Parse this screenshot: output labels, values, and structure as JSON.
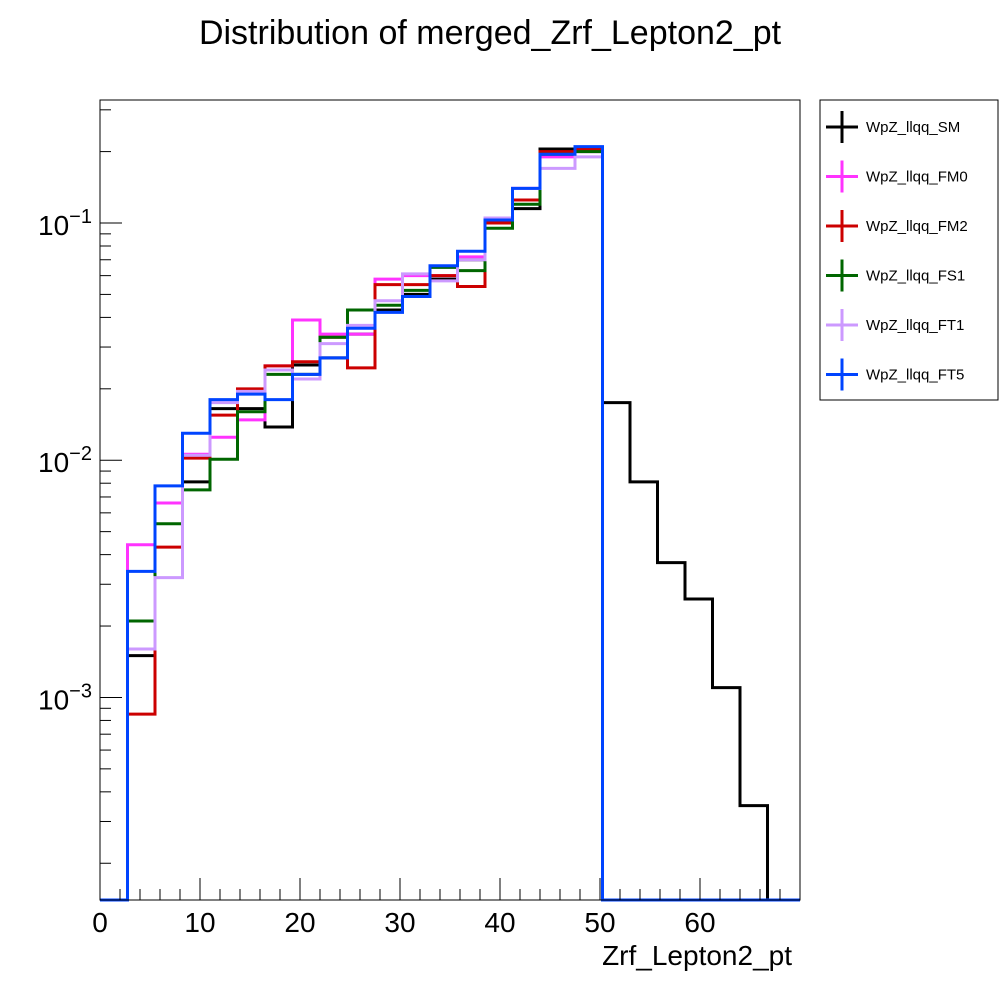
{
  "chart_data": {
    "type": "line",
    "style": "step-histogram",
    "title": "Distribution of merged_Zrf_Lepton2_pt",
    "xlabel": "Zrf_Lepton2_pt",
    "ylabel": "",
    "xlim": [
      0,
      70
    ],
    "ylim": [
      0.00014,
      0.33
    ],
    "yscale": "log",
    "grid": false,
    "legend_position": "right",
    "bin_edges": [
      0,
      2.75,
      5.5,
      8.25,
      11,
      13.75,
      16.5,
      19.25,
      22,
      24.75,
      27.5,
      30.25,
      33,
      35.75,
      38.5,
      41.25,
      44,
      47.5,
      50.25,
      53,
      55.75,
      58.5,
      61.25,
      64,
      66.75,
      70
    ],
    "x_ticks": [
      {
        "value": 0,
        "label": "0"
      },
      {
        "value": 10,
        "label": "10"
      },
      {
        "value": 20,
        "label": "20"
      },
      {
        "value": 30,
        "label": "30"
      },
      {
        "value": 40,
        "label": "40"
      },
      {
        "value": 50,
        "label": "50"
      },
      {
        "value": 60,
        "label": "60"
      }
    ],
    "y_ticks": [
      {
        "value": 0.001,
        "base": "10",
        "exp": "−3"
      },
      {
        "value": 0.01,
        "base": "10",
        "exp": "−2"
      },
      {
        "value": 0.1,
        "base": "10",
        "exp": "−1"
      }
    ],
    "series": [
      {
        "name": "WpZ_llqq_SM",
        "color": "#000000",
        "values": [
          0,
          0.0015,
          0.0066,
          0.0081,
          0.0165,
          0.0165,
          0.0138,
          0.0252,
          0.027,
          0.034,
          0.043,
          0.05,
          0.058,
          0.07,
          0.1,
          0.115,
          0.205,
          0.205,
          0.0175,
          0.0081,
          0.0037,
          0.0026,
          0.0011,
          0.00035,
          0,
          0
        ]
      },
      {
        "name": "WpZ_llqq_FM0",
        "color": "#ff33ff",
        "values": [
          0,
          0.0044,
          0.0066,
          0.0106,
          0.0125,
          0.0148,
          0.025,
          0.039,
          0.034,
          0.034,
          0.058,
          0.06,
          0.06,
          0.072,
          0.105,
          0.14,
          0.19,
          0.2,
          0,
          0,
          0,
          0,
          0,
          0,
          0,
          0
        ]
      },
      {
        "name": "WpZ_llqq_FM2",
        "color": "#cc0000",
        "values": [
          0,
          0.00085,
          0.0043,
          0.0102,
          0.0155,
          0.02,
          0.025,
          0.026,
          0.033,
          0.0245,
          0.055,
          0.055,
          0.06,
          0.054,
          0.1,
          0.125,
          0.2,
          0.205,
          0,
          0,
          0,
          0,
          0,
          0,
          0,
          0
        ]
      },
      {
        "name": "WpZ_llqq_FS1",
        "color": "#006600",
        "values": [
          0,
          0.0021,
          0.0054,
          0.0075,
          0.0101,
          0.016,
          0.023,
          0.023,
          0.033,
          0.043,
          0.045,
          0.052,
          0.065,
          0.063,
          0.095,
          0.12,
          0.195,
          0.2,
          0,
          0,
          0,
          0,
          0,
          0,
          0,
          0
        ]
      },
      {
        "name": "WpZ_llqq_FT1",
        "color": "#cc99ff",
        "values": [
          0,
          0.0016,
          0.0032,
          0.0105,
          0.0175,
          0.0195,
          0.024,
          0.022,
          0.031,
          0.037,
          0.047,
          0.061,
          0.057,
          0.07,
          0.105,
          0.14,
          0.17,
          0.19,
          0,
          0,
          0,
          0,
          0,
          0,
          0,
          0
        ]
      },
      {
        "name": "WpZ_llqq_FT5",
        "color": "#0044ff",
        "values": [
          0,
          0.0034,
          0.0078,
          0.013,
          0.018,
          0.019,
          0.018,
          0.023,
          0.027,
          0.036,
          0.042,
          0.049,
          0.066,
          0.076,
          0.103,
          0.14,
          0.195,
          0.21,
          0,
          0,
          0,
          0,
          0,
          0,
          0,
          0
        ]
      }
    ]
  }
}
